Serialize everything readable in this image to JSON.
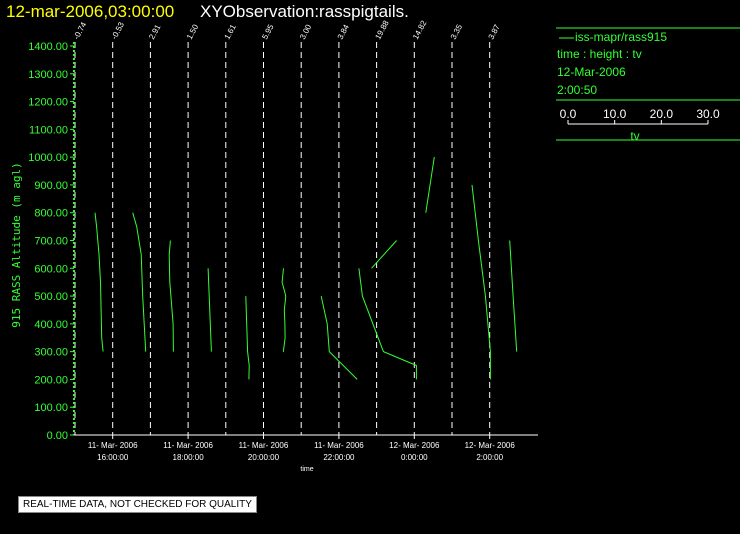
{
  "header": {
    "date": "12-mar-2006,03:00:00",
    "title": "XYObservation:rasspigtails."
  },
  "legend": {
    "series_label": "iss-mapr/rass915",
    "type_line": "time : height : tv",
    "date": "12-Mar-2006",
    "time": "2:00:50",
    "scale_ticks": [
      "0.0",
      "10.0",
      "20.0",
      "30.0"
    ],
    "scale_label": "tv"
  },
  "footer": {
    "note": "REAL-TIME DATA, NOT CHECKED FOR QUALITY"
  },
  "colors": {
    "series": "#33ff33",
    "axis": "#ffffff",
    "gridline": "#ffffff",
    "date": "#ffff00",
    "background": "#000000"
  },
  "chart_data": {
    "type": "line",
    "ylabel": "915 RASS Altitude (m agl)",
    "xlabel": "time",
    "ylim": [
      0,
      1400
    ],
    "y_ticks": [
      "0.00",
      "100.00",
      "200.00",
      "300.00",
      "400.00",
      "500.00",
      "600.00",
      "700.00",
      "800.00",
      "900.00",
      "1000.00",
      "1100.00",
      "1200.00",
      "1300.00",
      "1400.00"
    ],
    "x_tick_labels": [
      {
        "date": "11- Mar- 2006",
        "time": "16:00:00"
      },
      {
        "date": "11- Mar- 2006",
        "time": "18:00:00"
      },
      {
        "date": "11- Mar- 2006",
        "time": "20:00:00"
      },
      {
        "date": "11- Mar- 2006",
        "time": "22:00:00"
      },
      {
        "date": "12- Mar- 2006",
        "time": "0:00:00"
      },
      {
        "date": "12- Mar- 2006",
        "time": "2:00:00"
      }
    ],
    "profile_values": [
      "-0.74",
      "-0.53",
      "2.91",
      "1.50",
      "1.61",
      "5.95",
      "3.00",
      "3.84",
      "19.88",
      "14.82",
      "3.35",
      "3.87"
    ],
    "tv_scale": [
      0,
      30
    ],
    "series": [
      {
        "name": "iss-mapr/rass915",
        "profiles": [
          {
            "x": [
              -0.74,
              -0.2,
              0.6,
              1.1,
              1.3,
              1.5,
              1.95
            ],
            "y": [
              800,
              750,
              650,
              550,
              450,
              350,
              300
            ]
          },
          {
            "x": [
              -0.53,
              0.8,
              2.3,
              2.8,
              3.8
            ],
            "y": [
              800,
              750,
              650,
              500,
              300
            ]
          },
          {
            "x": [
              2.91,
              2.5,
              2.7,
              3.8,
              3.9
            ],
            "y": [
              700,
              650,
              550,
              400,
              300
            ]
          },
          {
            "x": [
              1.5,
              1.85,
              2.6
            ],
            "y": [
              600,
              500,
              300
            ]
          },
          {
            "x": [
              1.61,
              2.2,
              2.75,
              2.65
            ],
            "y": [
              500,
              300,
              250,
              200
            ]
          },
          {
            "x": [
              5.95,
              5.5,
              6.7,
              6.2,
              6.4,
              6.5,
              5.9,
              6.0
            ],
            "y": [
              600,
              550,
              500,
              450,
              400,
              350,
              300,
              300
            ]
          },
          {
            "x": [
              3.0,
              5.0,
              5.7,
              15.0
            ],
            "y": [
              500,
              400,
              300,
              200
            ]
          },
          {
            "x": [
              3.84,
              5.0,
              12.0,
              23.0,
              23.0
            ],
            "y": [
              600,
              500,
              300,
              250,
              200
            ]
          },
          {
            "x": [
              19.88,
              11.5
            ],
            "y": [
              700,
              600
            ]
          },
          {
            "x": [
              14.82,
              12.0
            ],
            "y": [
              1000,
              800
            ]
          },
          {
            "x": [
              3.35,
              5.5,
              7.8,
              9.5,
              9.5
            ],
            "y": [
              900,
              700,
              500,
              300,
              200
            ]
          },
          {
            "x": [
              3.87,
              5.0,
              6.2
            ],
            "y": [
              700,
              500,
              300
            ]
          }
        ]
      }
    ],
    "grid": true,
    "legend_position": "top-right"
  }
}
